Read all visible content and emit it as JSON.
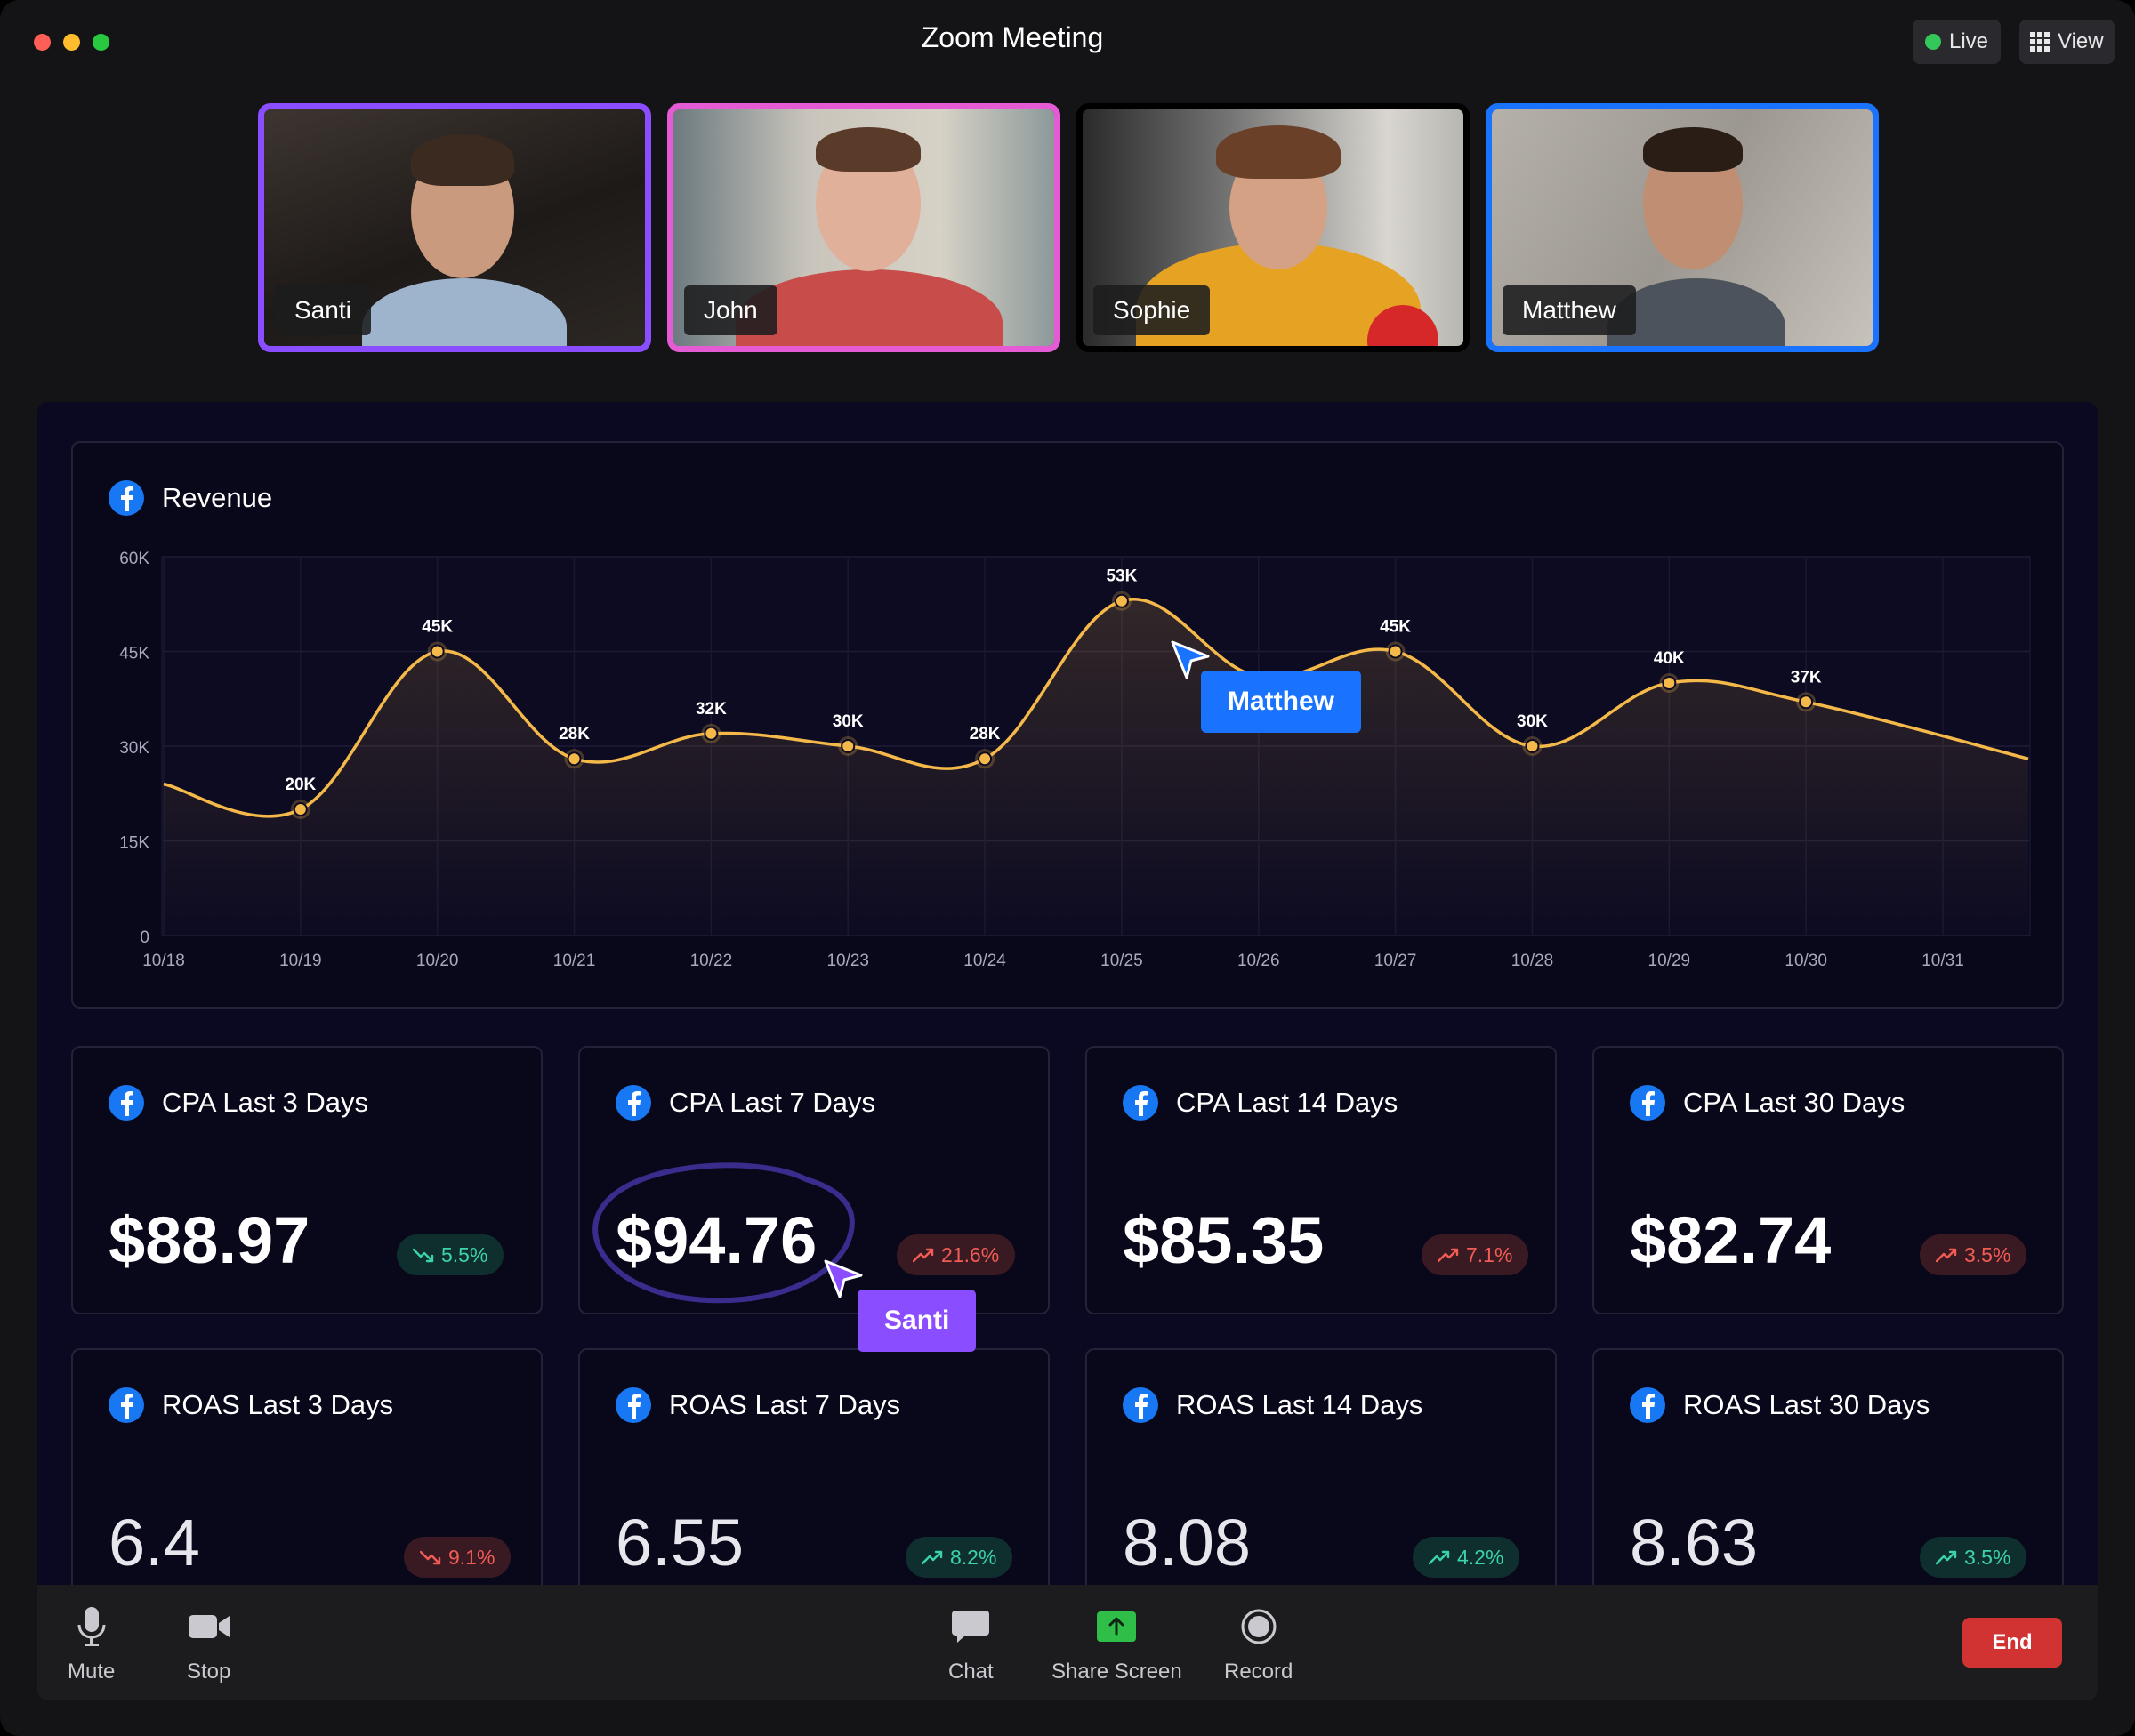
{
  "window": {
    "title": "Zoom Meeting"
  },
  "topbar": {
    "live_label": "Live",
    "view_label": "View"
  },
  "participants": [
    {
      "name": "Santi",
      "border": "#8a4dff"
    },
    {
      "name": "John",
      "border": "#e55bd3"
    },
    {
      "name": "Sophie",
      "border": "#000000"
    },
    {
      "name": "Matthew",
      "border": "#1a73ff"
    }
  ],
  "revenue": {
    "title": "Revenue",
    "chart_data": {
      "type": "line",
      "x": [
        "10/18",
        "10/19",
        "10/20",
        "10/21",
        "10/22",
        "10/23",
        "10/24",
        "10/25",
        "10/26",
        "10/27",
        "10/28",
        "10/29",
        "10/30",
        "10/31"
      ],
      "values": [
        24000,
        20000,
        45000,
        28000,
        32000,
        30000,
        28000,
        53000,
        41000,
        45000,
        30000,
        40000,
        37000,
        28000
      ],
      "point_labels": [
        "",
        "20K",
        "45K",
        "28K",
        "32K",
        "30K",
        "28K",
        "53K",
        "",
        "45K",
        "30K",
        "40K",
        "37K",
        ""
      ],
      "y_ticks": [
        "0",
        "15K",
        "30K",
        "45K",
        "60K"
      ],
      "ylim": [
        0,
        60000
      ],
      "line_color": "#f5b94a"
    }
  },
  "cursors": {
    "matthew": {
      "label": "Matthew",
      "color": "#1a73ff"
    },
    "santi": {
      "label": "Santi",
      "color": "#8a4dff"
    }
  },
  "cpa_cards": [
    {
      "title": "CPA Last 3 Days",
      "value": "$88.97",
      "change": "5.5%"
    },
    {
      "title": "CPA Last 7 Days",
      "value": "$94.76",
      "change": "21.6%"
    },
    {
      "title": "CPA Last 14 Days",
      "value": "$85.35",
      "change": "7.1%"
    },
    {
      "title": "CPA Last 30 Days",
      "value": "$82.74",
      "change": "3.5%"
    }
  ],
  "roas_cards": [
    {
      "title": "ROAS Last 3 Days",
      "value": "6.4",
      "change": "9.1%"
    },
    {
      "title": "ROAS Last 7 Days",
      "value": "6.55",
      "change": "8.2%"
    },
    {
      "title": "ROAS Last 14 Days",
      "value": "8.08",
      "change": "4.2%"
    },
    {
      "title": "ROAS Last 30 Days",
      "value": "8.63",
      "change": "3.5%"
    }
  ],
  "toolbar": {
    "mute": "Mute",
    "stop": "Stop",
    "chat": "Chat",
    "share": "Share Screen",
    "record": "Record",
    "end": "End"
  }
}
